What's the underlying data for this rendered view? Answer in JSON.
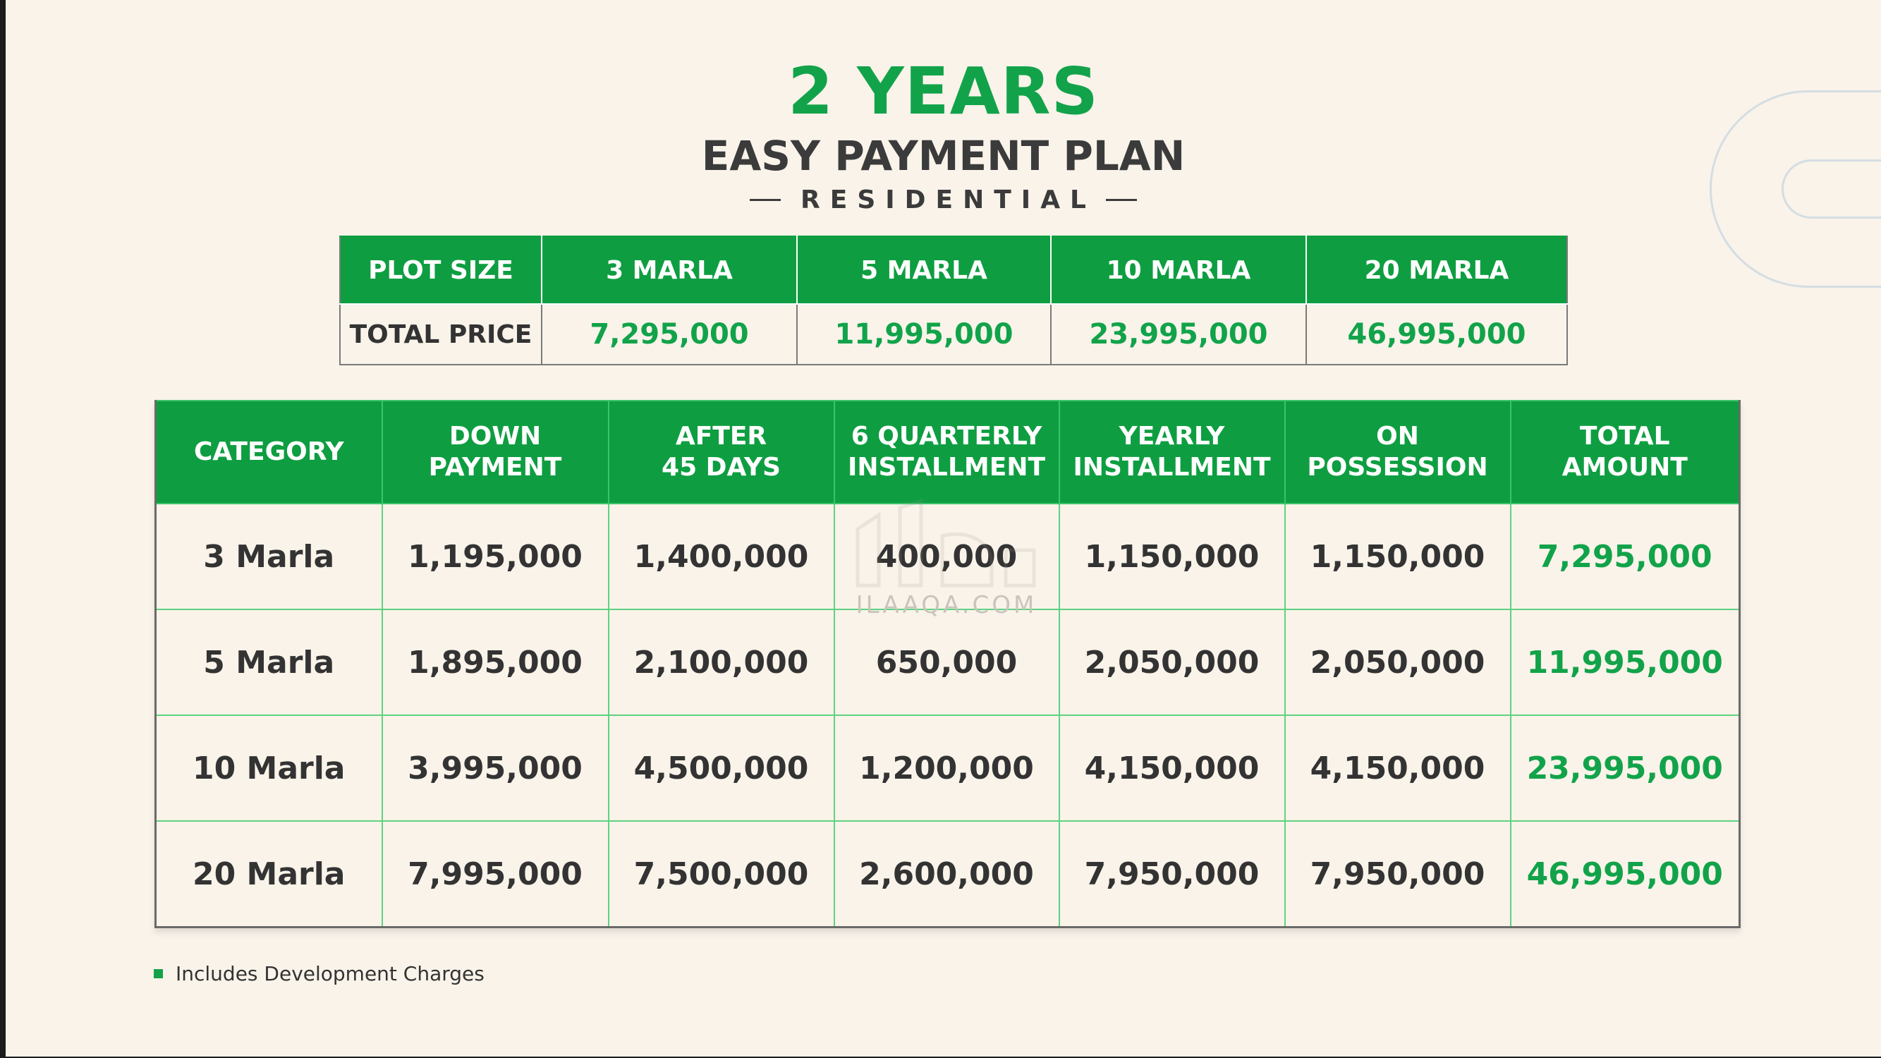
{
  "header": {
    "title": "2 YEARS",
    "subtitle": "EASY PAYMENT PLAN",
    "category": "RESIDENTIAL"
  },
  "price_table": {
    "header": [
      "PLOT SIZE",
      "3 MARLA",
      "5 MARLA",
      "10 MARLA",
      "20 MARLA"
    ],
    "row": [
      "TOTAL PRICE",
      "7,295,000",
      "11,995,000",
      "23,995,000",
      "46,995,000"
    ]
  },
  "plan_table": {
    "columns": [
      "CATEGORY",
      "DOWN\nPAYMENT",
      "AFTER\n45 DAYS",
      "6 QUARTERLY\nINSTALLMENT",
      "YEARLY\nINSTALLMENT",
      "ON\nPOSSESSION",
      "TOTAL\nAMOUNT"
    ],
    "rows": [
      [
        "3 Marla",
        "1,195,000",
        "1,400,000",
        "400,000",
        "1,150,000",
        "1,150,000",
        "7,295,000"
      ],
      [
        "5 Marla",
        "1,895,000",
        "2,100,000",
        "650,000",
        "2,050,000",
        "2,050,000",
        "11,995,000"
      ],
      [
        "10 Marla",
        "3,995,000",
        "4,500,000",
        "1,200,000",
        "4,150,000",
        "4,150,000",
        "23,995,000"
      ],
      [
        "20 Marla",
        "7,995,000",
        "7,500,000",
        "2,600,000",
        "7,950,000",
        "7,950,000",
        "46,995,000"
      ]
    ]
  },
  "footnote": "Includes Development Charges",
  "watermark": "ILAAQA.COM",
  "colors": {
    "brand_green": "#0e9e41",
    "accent_green": "#12a34a",
    "background": "#f9f3ea",
    "text_dark": "#333333"
  }
}
